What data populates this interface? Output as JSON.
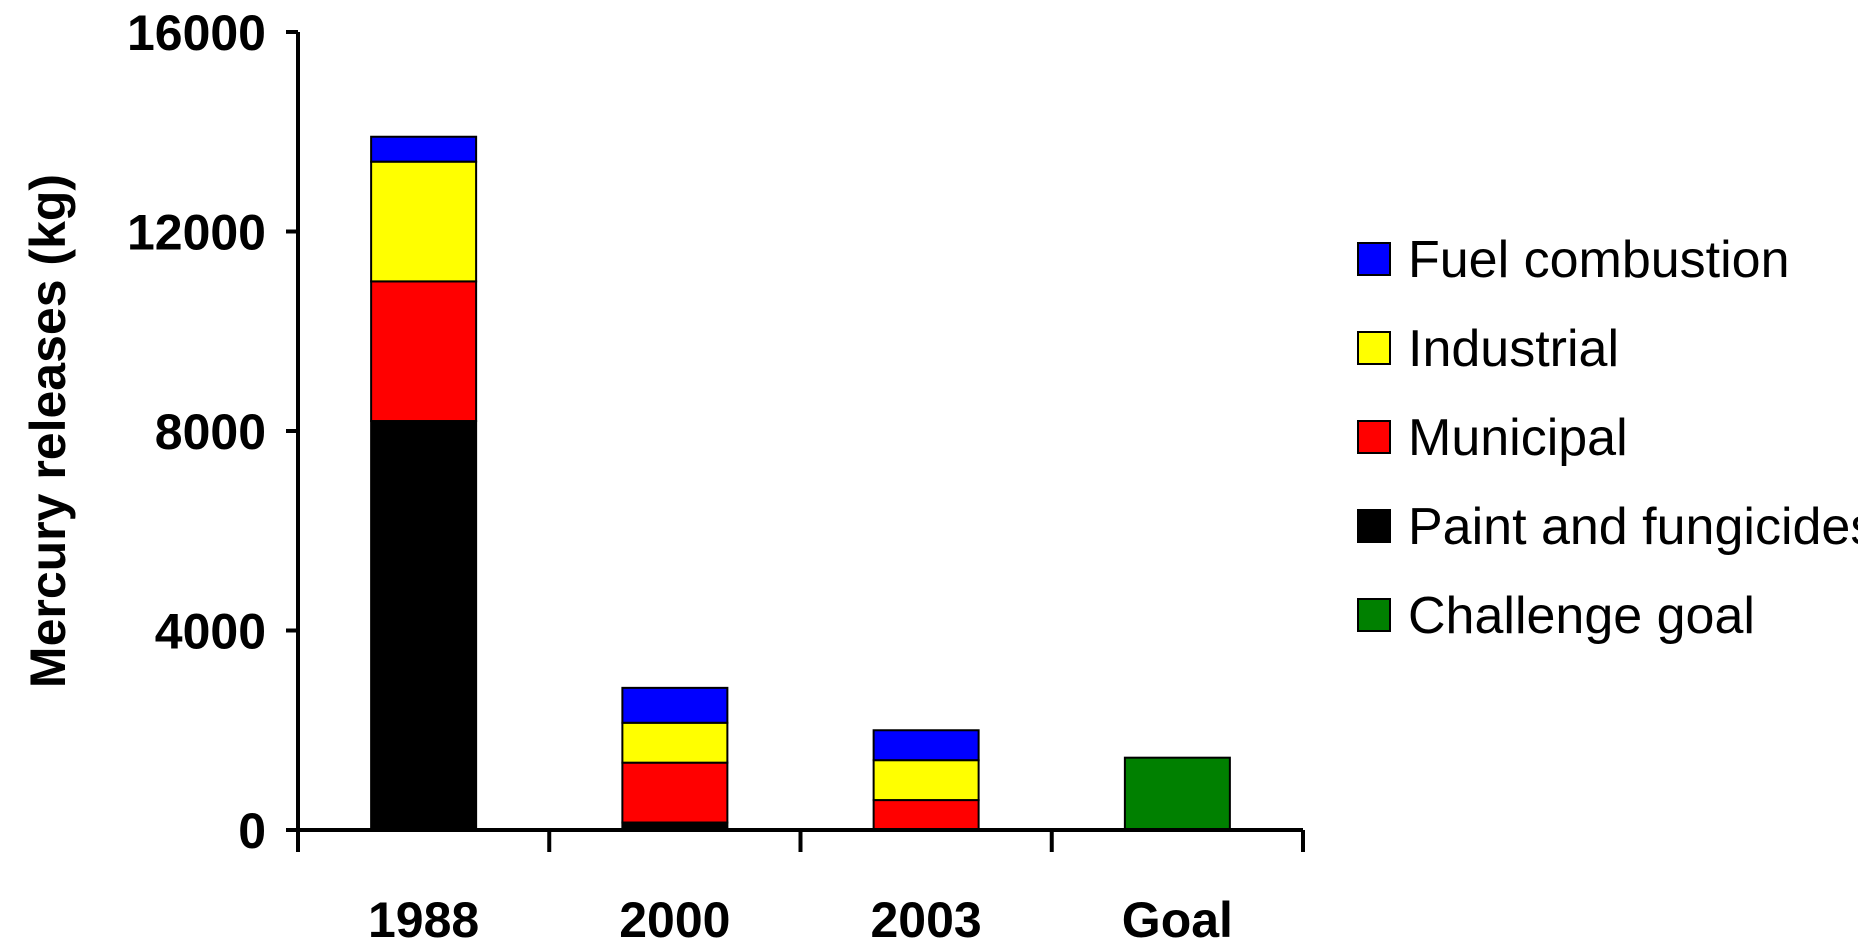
{
  "chart_data": {
    "type": "bar",
    "stacked": true,
    "categories": [
      "1988",
      "2000",
      "2003",
      "Goal"
    ],
    "ylabel": "Mercury releases (kg)",
    "xlabel": "",
    "title": "",
    "ylim": [
      0,
      16000
    ],
    "yticks": [
      "0",
      "4000",
      "8000",
      "12000",
      "16000"
    ],
    "grid": false,
    "legend_position": "right",
    "series": [
      {
        "name": "Paint and fungicides",
        "color": "#000000",
        "values": [
          8200,
          150,
          0,
          0
        ]
      },
      {
        "name": "Municipal",
        "color": "#ff0000",
        "values": [
          2800,
          1200,
          600,
          0
        ]
      },
      {
        "name": "Industrial",
        "color": "#ffff00",
        "values": [
          2400,
          800,
          800,
          0
        ]
      },
      {
        "name": "Fuel combustion",
        "color": "#0000ff",
        "values": [
          500,
          700,
          600,
          0
        ]
      },
      {
        "name": "Challenge goal",
        "color": "#008000",
        "values": [
          0,
          0,
          0,
          1450
        ]
      }
    ],
    "legend_order": [
      "Fuel combustion",
      "Industrial",
      "Municipal",
      "Paint and fungicides",
      "Challenge goal"
    ]
  }
}
